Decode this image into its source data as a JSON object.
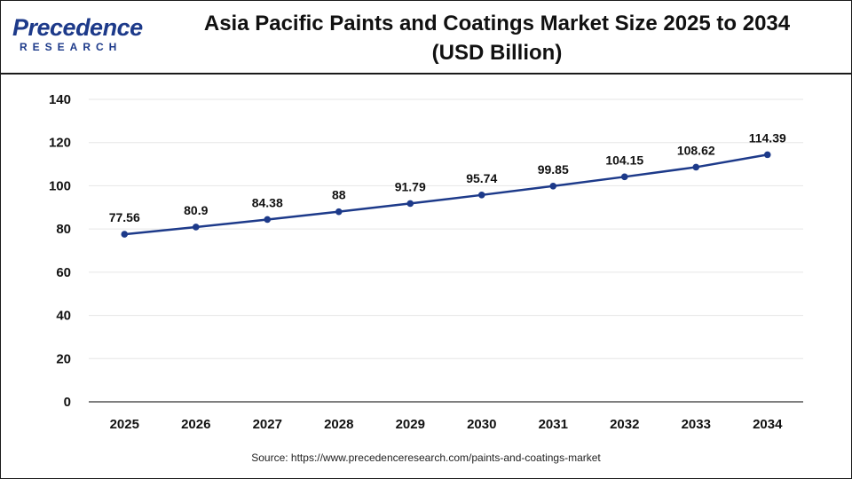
{
  "brand": {
    "logo_main": "Precedence",
    "logo_sub": "RESEARCH"
  },
  "header": {
    "title_line1": "Asia Pacific Paints and Coatings Market Size 2025 to 2034",
    "title_line2": "(USD Billion)"
  },
  "source": "Source: https://www.precedenceresearch.com/paints-and-coatings-market",
  "colors": {
    "line": "#1d3a8a",
    "brand": "#1d3a8a"
  },
  "chart_data": {
    "type": "line",
    "title": "Asia Pacific Paints and Coatings Market Size 2025 to 2034 (USD Billion)",
    "categories": [
      "2025",
      "2026",
      "2027",
      "2028",
      "2029",
      "2030",
      "2031",
      "2032",
      "2033",
      "2034"
    ],
    "series": [
      {
        "values": [
          77.56,
          80.9,
          84.38,
          88,
          91.79,
          95.74,
          99.85,
          104.15,
          108.62,
          114.39
        ]
      }
    ],
    "data_labels": [
      "77.56",
      "80.9",
      "84.38",
      "88",
      "91.79",
      "95.74",
      "99.85",
      "104.15",
      "108.62",
      "114.39"
    ],
    "yticks": [
      "0",
      "20",
      "40",
      "60",
      "80",
      "100",
      "120",
      "140"
    ],
    "ylim": [
      0,
      140
    ],
    "xlabel": "",
    "ylabel": "",
    "grid": true,
    "legend": "none"
  }
}
